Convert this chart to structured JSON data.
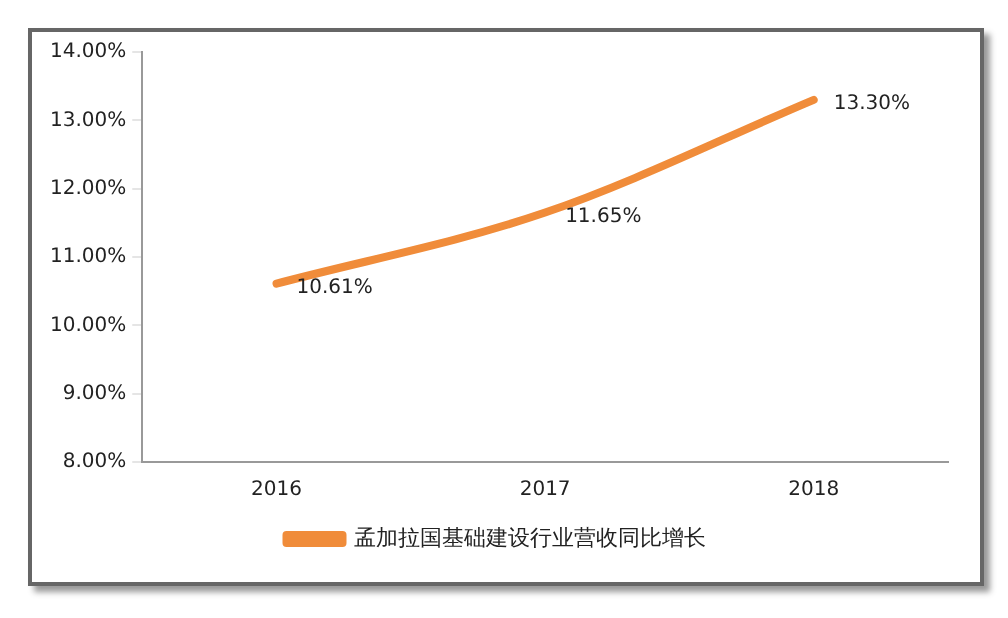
{
  "chart_data": {
    "type": "line",
    "categories": [
      "2016",
      "2017",
      "2018"
    ],
    "series": [
      {
        "name": "孟加拉国基础建设行业营收同比增长",
        "color": "#f08c3a",
        "values": [
          10.61,
          11.65,
          13.3
        ],
        "value_labels": [
          "10.61%",
          "11.65%",
          "13.30%"
        ]
      }
    ],
    "ylim": [
      8,
      14
    ],
    "yticks": [
      {
        "value": 8,
        "label": "8.00%"
      },
      {
        "value": 9,
        "label": "9.00%"
      },
      {
        "value": 10,
        "label": "10.00%"
      },
      {
        "value": 11,
        "label": "11.00%"
      },
      {
        "value": 12,
        "label": "12.00%"
      },
      {
        "value": 13,
        "label": "13.00%"
      },
      {
        "value": 14,
        "label": "14.00%"
      }
    ],
    "grid": false,
    "legend": "bottom",
    "marker": "none",
    "line_style": "solid"
  }
}
